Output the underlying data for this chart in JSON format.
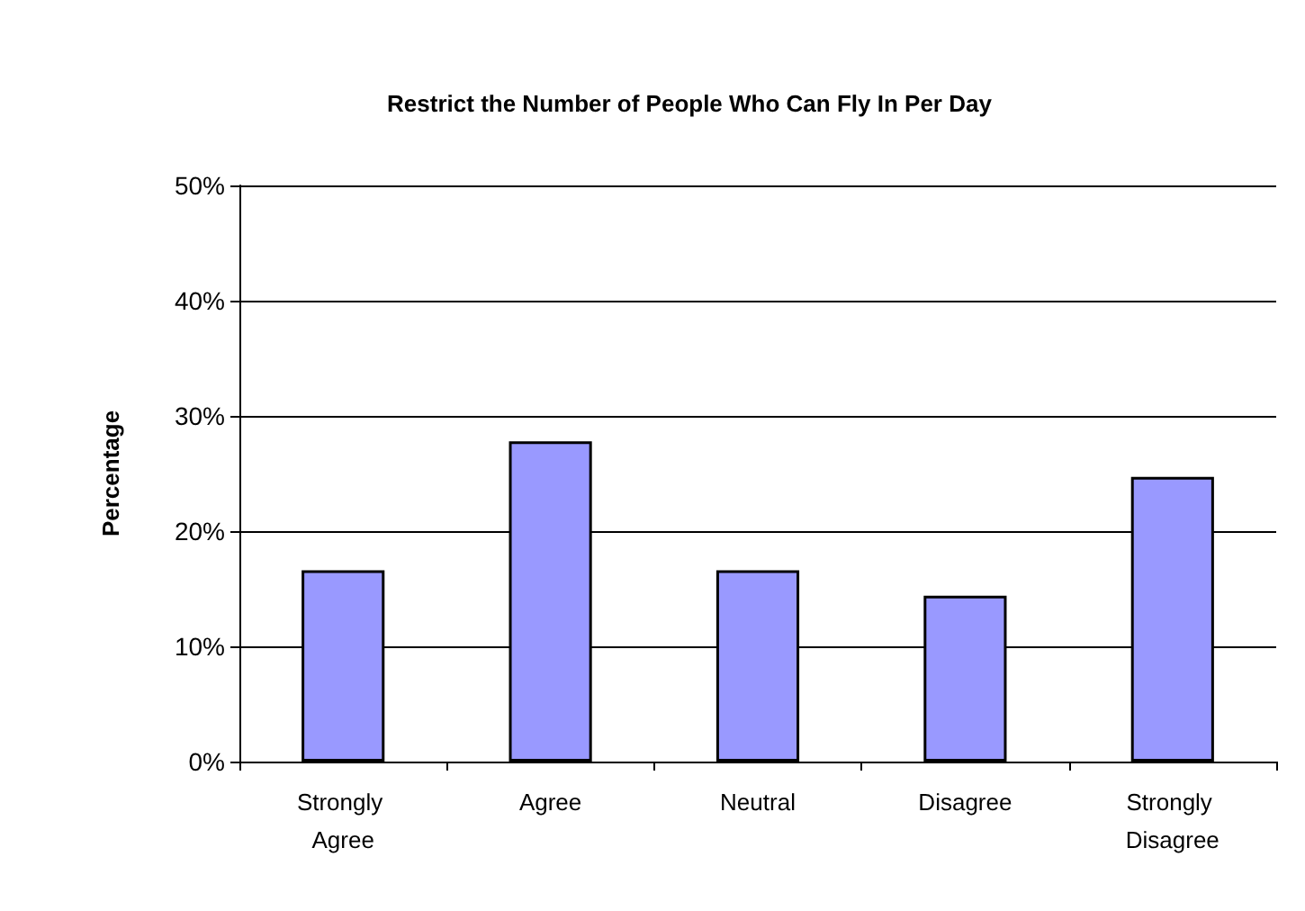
{
  "chart_data": {
    "type": "bar",
    "title": "Restrict the Number of People Who Can Fly In Per Day",
    "ylabel": "Percentage",
    "categories": [
      "Strongly Agree",
      "Agree",
      "Neutral",
      "Disagree",
      "Strongly Disagree"
    ],
    "values": [
      16.6,
      27.8,
      16.6,
      14.4,
      24.7
    ],
    "color": "#9999ff",
    "ylim": [
      0,
      50
    ],
    "yticks": [
      {
        "value": 0,
        "label": "0%"
      },
      {
        "value": 10,
        "label": "10%"
      },
      {
        "value": 20,
        "label": "20%"
      },
      {
        "value": 30,
        "label": "30%"
      },
      {
        "value": 40,
        "label": "40%"
      },
      {
        "value": 50,
        "label": "50%"
      }
    ],
    "grid": "y"
  }
}
